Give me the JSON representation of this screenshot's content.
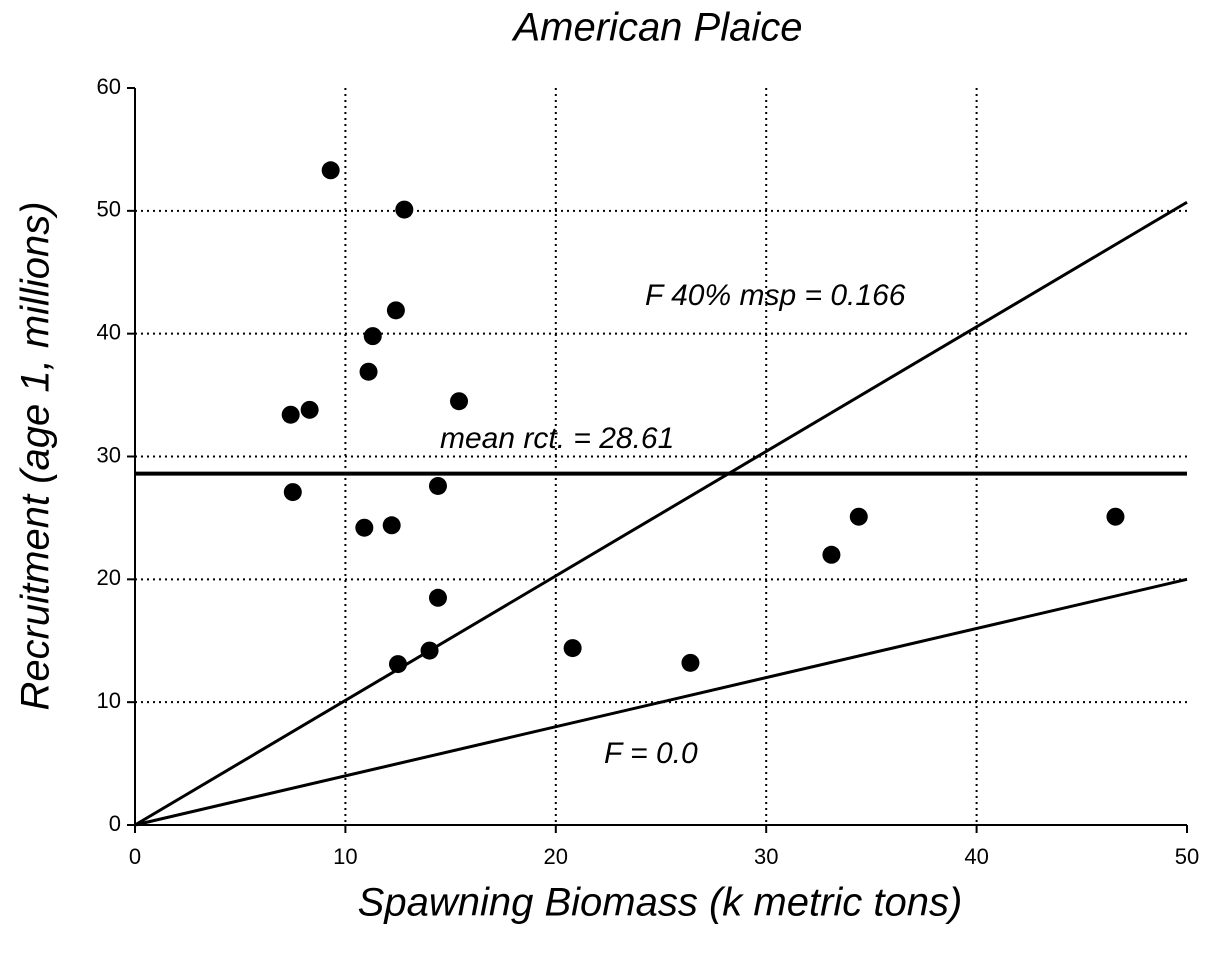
{
  "chart_data": {
    "type": "scatter",
    "title": "American Plaice",
    "x_label": "Spawning Biomass (k metric tons)",
    "y_label": "Recruitment (age 1, millions)",
    "x": [
      9.3,
      12.8,
      12.4,
      11.3,
      11.1,
      7.4,
      8.3,
      15.4,
      7.5,
      14.4,
      10.9,
      12.2,
      14.4,
      12.5,
      14.0,
      20.8,
      26.4,
      33.1,
      34.4,
      46.6
    ],
    "values": [
      53.3,
      50.1,
      41.9,
      39.8,
      36.9,
      33.4,
      33.8,
      34.5,
      27.1,
      27.6,
      24.2,
      24.4,
      18.5,
      13.1,
      14.2,
      14.4,
      13.2,
      22.0,
      25.1,
      25.1
    ],
    "color": "#000000",
    "lines": [
      {
        "label": "mean rct. = 28.61",
        "x": [
          0,
          50
        ],
        "y": [
          28.61,
          28.61
        ],
        "width": 4
      },
      {
        "label": "F 40% msp = 0.166",
        "x": [
          0,
          50
        ],
        "y": [
          0,
          50.7
        ],
        "width": 3
      },
      {
        "label": "F = 0.0",
        "x": [
          0,
          50
        ],
        "y": [
          0,
          20
        ],
        "width": 3
      }
    ],
    "xlim": [
      0,
      50
    ],
    "ylim": [
      0,
      60
    ],
    "xticks": [
      0,
      10,
      20,
      30,
      40,
      50
    ],
    "yticks": [
      0,
      10,
      20,
      30,
      40,
      50,
      60
    ],
    "grid": true
  }
}
